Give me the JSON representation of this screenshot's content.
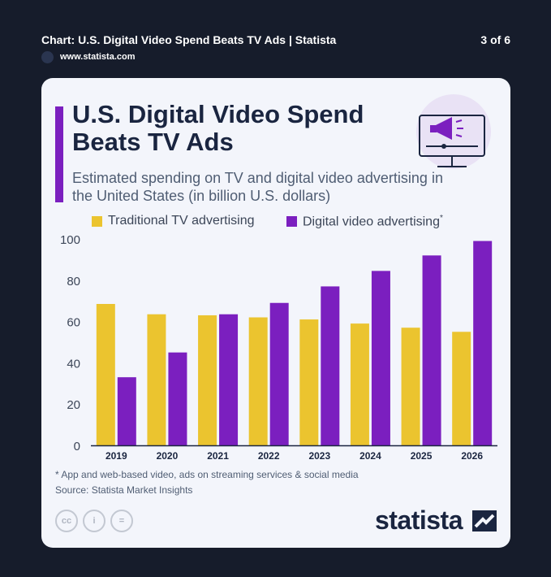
{
  "topbar": {
    "title": "Chart: U.S. Digital Video Spend Beats TV Ads | Statista",
    "page_indicator": "3 of 6",
    "site": "www.statista.com"
  },
  "card": {
    "title": "U.S. Digital Video Spend Beats TV Ads",
    "subtitle": "Estimated spending on TV and digital video advertising in the United States (in billion U.S. dollars)",
    "footnote": "* App and web-based video, ads on streaming services & social media",
    "source": "Source: Statista Market Insights",
    "brand": "statista",
    "license_icons": [
      "cc-icon",
      "attribution-icon",
      "no-derivatives-icon"
    ]
  },
  "colors": {
    "tv": "#ebc42f",
    "digital": "#7b1fbf",
    "title": "#1a2540",
    "background": "#f3f5fb"
  },
  "chart_data": {
    "type": "bar",
    "categories": [
      "2019",
      "2020",
      "2021",
      "2022",
      "2023",
      "2024",
      "2025",
      "2026"
    ],
    "series": [
      {
        "name": "Traditional TV advertising",
        "values": [
          68.5,
          63.5,
          63,
          62,
          61,
          59,
          57,
          55
        ]
      },
      {
        "name": "Digital video advertising",
        "values": [
          33,
          45,
          63.5,
          69,
          77,
          84.5,
          92,
          99
        ]
      }
    ],
    "legend_asterisk": "*",
    "ylim": [
      0,
      100
    ],
    "yticks": [
      0,
      20,
      40,
      60,
      80,
      100
    ],
    "grid": false,
    "legend": "top-left"
  }
}
